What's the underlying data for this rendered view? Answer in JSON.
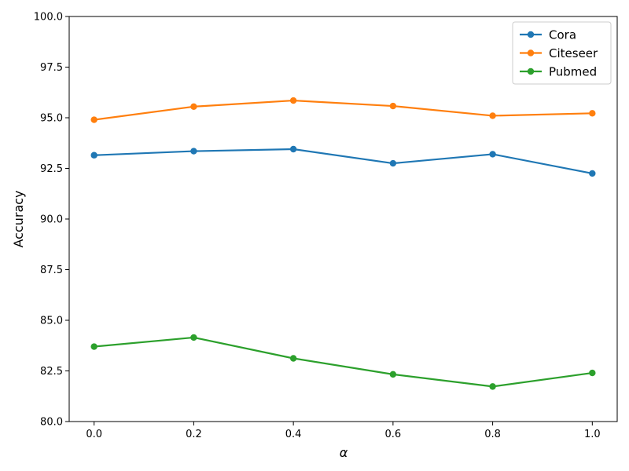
{
  "chart_data": {
    "type": "line",
    "title": "",
    "xlabel": "α",
    "ylabel": "Accuracy",
    "x": [
      0.0,
      0.2,
      0.4,
      0.6,
      0.8,
      1.0
    ],
    "xlim": [
      -0.05,
      1.05
    ],
    "ylim": [
      80.0,
      100.0
    ],
    "xticks": [
      "0.0",
      "0.2",
      "0.4",
      "0.6",
      "0.8",
      "1.0"
    ],
    "yticks": [
      "80.0",
      "82.5",
      "85.0",
      "87.5",
      "90.0",
      "92.5",
      "95.0",
      "97.5",
      "100.0"
    ],
    "grid": false,
    "legend_position": "top-right",
    "series": [
      {
        "name": "Cora",
        "color": "#1f77b4",
        "values": [
          93.15,
          93.35,
          93.45,
          92.75,
          93.2,
          92.25
        ]
      },
      {
        "name": "Citeseer",
        "color": "#ff7f0e",
        "values": [
          94.9,
          95.55,
          95.85,
          95.58,
          95.1,
          95.22
        ]
      },
      {
        "name": "Pubmed",
        "color": "#2ca02c",
        "values": [
          83.7,
          84.15,
          83.12,
          82.33,
          81.73,
          82.4
        ]
      }
    ]
  }
}
